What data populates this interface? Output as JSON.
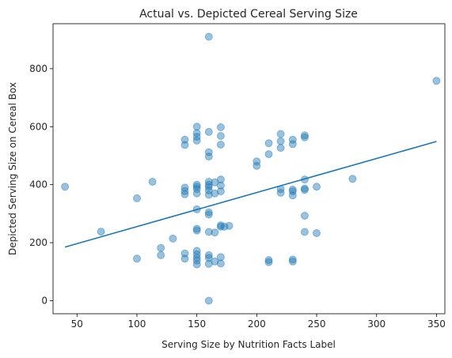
{
  "chart_data": {
    "type": "scatter",
    "title": "Actual vs. Depicted Cereal Serving Size",
    "xlabel": "Serving Size by Nutrition Facts Label",
    "ylabel": "Depicted Serving Size on Cereal Box",
    "xlim": [
      30,
      357
    ],
    "ylim": [
      -45,
      955
    ],
    "xticks": [
      50,
      100,
      150,
      200,
      250,
      300,
      350
    ],
    "yticks": [
      0,
      200,
      400,
      600,
      800
    ],
    "grid": false,
    "point_color": "#1f77b4",
    "point_alpha": 0.45,
    "trendline": {
      "x": [
        40,
        350
      ],
      "y": [
        185,
        549
      ],
      "color": "#1f77b4"
    },
    "points": [
      [
        40,
        393
      ],
      [
        70,
        238
      ],
      [
        100,
        353
      ],
      [
        100,
        145
      ],
      [
        113,
        410
      ],
      [
        120,
        182
      ],
      [
        120,
        157
      ],
      [
        130,
        214
      ],
      [
        140,
        555
      ],
      [
        140,
        537
      ],
      [
        140,
        390
      ],
      [
        140,
        378
      ],
      [
        140,
        367
      ],
      [
        140,
        163
      ],
      [
        140,
        145
      ],
      [
        150,
        600
      ],
      [
        150,
        578
      ],
      [
        150,
        565
      ],
      [
        150,
        552
      ],
      [
        150,
        400
      ],
      [
        150,
        393
      ],
      [
        150,
        385
      ],
      [
        150,
        370
      ],
      [
        150,
        315
      ],
      [
        150,
        248
      ],
      [
        150,
        242
      ],
      [
        150,
        172
      ],
      [
        150,
        160
      ],
      [
        150,
        148
      ],
      [
        150,
        138
      ],
      [
        150,
        125
      ],
      [
        160,
        910
      ],
      [
        160,
        582
      ],
      [
        160,
        512
      ],
      [
        160,
        497
      ],
      [
        160,
        410
      ],
      [
        160,
        400
      ],
      [
        160,
        392
      ],
      [
        160,
        380
      ],
      [
        160,
        365
      ],
      [
        160,
        305
      ],
      [
        160,
        297
      ],
      [
        160,
        237
      ],
      [
        160,
        157
      ],
      [
        160,
        148
      ],
      [
        160,
        127
      ],
      [
        160,
        0
      ],
      [
        165,
        408
      ],
      [
        165,
        370
      ],
      [
        165,
        235
      ],
      [
        165,
        135
      ],
      [
        170,
        598
      ],
      [
        170,
        568
      ],
      [
        170,
        538
      ],
      [
        170,
        418
      ],
      [
        170,
        397
      ],
      [
        170,
        377
      ],
      [
        170,
        260
      ],
      [
        170,
        255
      ],
      [
        170,
        150
      ],
      [
        170,
        128
      ],
      [
        173,
        255
      ],
      [
        177,
        258
      ],
      [
        200,
        480
      ],
      [
        200,
        465
      ],
      [
        210,
        543
      ],
      [
        210,
        505
      ],
      [
        210,
        140
      ],
      [
        210,
        133
      ],
      [
        220,
        575
      ],
      [
        220,
        550
      ],
      [
        220,
        527
      ],
      [
        220,
        385
      ],
      [
        220,
        372
      ],
      [
        230,
        555
      ],
      [
        230,
        540
      ],
      [
        230,
        383
      ],
      [
        230,
        377
      ],
      [
        230,
        363
      ],
      [
        230,
        142
      ],
      [
        230,
        135
      ],
      [
        240,
        570
      ],
      [
        240,
        563
      ],
      [
        240,
        418
      ],
      [
        240,
        387
      ],
      [
        240,
        382
      ],
      [
        240,
        293
      ],
      [
        240,
        237
      ],
      [
        250,
        393
      ],
      [
        250,
        233
      ],
      [
        280,
        420
      ],
      [
        350,
        758
      ]
    ]
  }
}
